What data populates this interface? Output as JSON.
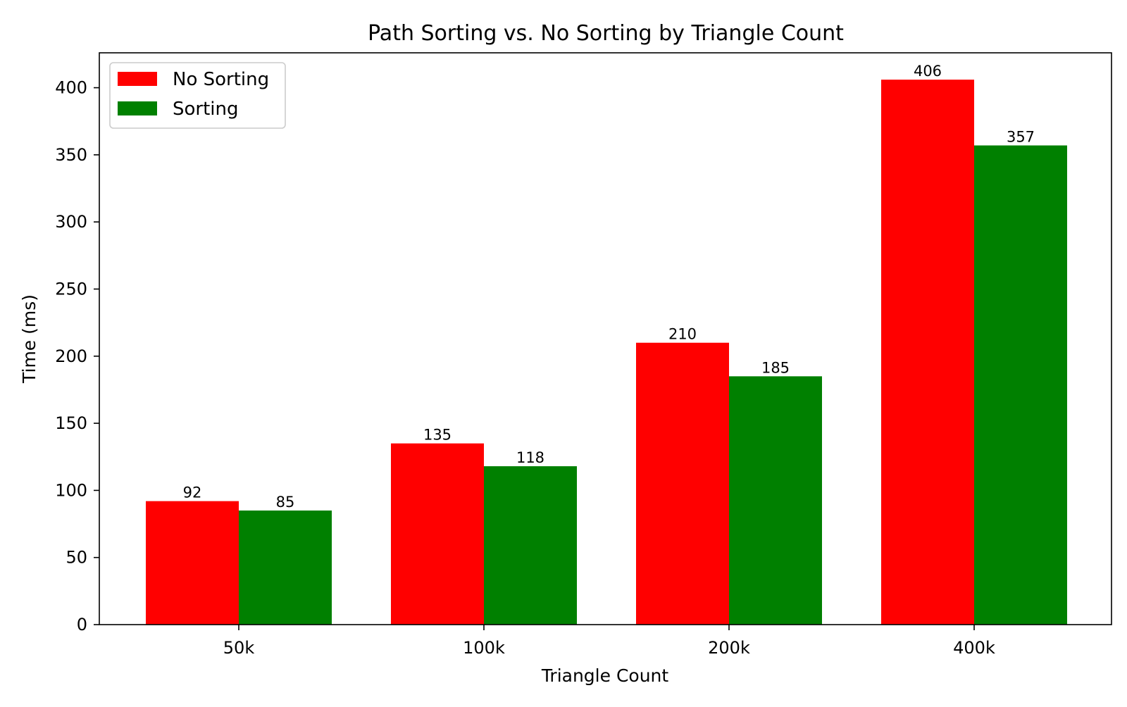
{
  "chart_data": {
    "type": "bar",
    "title": "Path Sorting vs. No Sorting by Triangle Count",
    "xlabel": "Triangle Count",
    "ylabel": "Time (ms)",
    "categories": [
      "50k",
      "100k",
      "200k",
      "400k"
    ],
    "series": [
      {
        "name": "No Sorting",
        "color": "#ff0000",
        "values": [
          92,
          135,
          210,
          406
        ]
      },
      {
        "name": "Sorting",
        "color": "#008000",
        "values": [
          85,
          118,
          185,
          357
        ]
      }
    ],
    "ylim": [
      0,
      426
    ],
    "yticks": [
      0,
      50,
      100,
      150,
      200,
      250,
      300,
      350,
      400
    ],
    "grid": false,
    "legend_position": "top-left"
  }
}
